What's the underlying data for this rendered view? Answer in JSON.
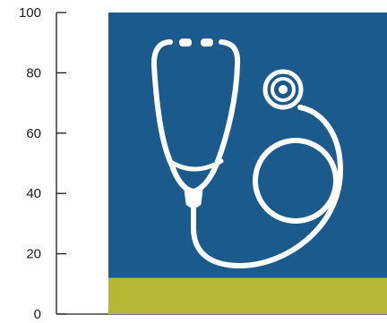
{
  "chart_data": {
    "type": "bar",
    "title": "",
    "xlabel": "",
    "ylabel": "",
    "ylim": [
      0,
      100
    ],
    "yticks": [
      0,
      20,
      40,
      60,
      80,
      100
    ],
    "categories": [
      ""
    ],
    "series": [
      {
        "values": [
          12
        ],
        "color": "#b5b834"
      },
      {
        "values": [
          88
        ],
        "color": "#1b5a8c"
      }
    ],
    "stacked": true,
    "icon": "stethoscope-icon",
    "icon_color": "#ffffff",
    "grid": false,
    "legend": "none"
  }
}
